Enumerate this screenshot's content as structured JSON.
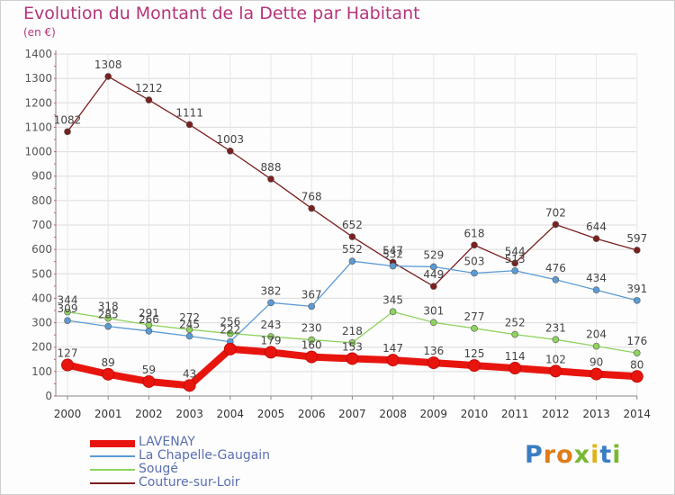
{
  "header": {
    "title": "Evolution du Montant de la Dette par Habitant",
    "unit": "(en €)"
  },
  "logo": {
    "letters": [
      "P",
      "r",
      "o",
      "x",
      "i",
      "t",
      "i"
    ],
    "colors": [
      "#3a7ec2",
      "#e07b1a",
      "#e07b1a",
      "#7ab833",
      "#e0b21a",
      "#3a7ec2",
      "#7ab833"
    ]
  },
  "chart_data": {
    "type": "line",
    "title": "Evolution du Montant de la Dette par Habitant",
    "ylabel": "(en €)",
    "xlabel": "",
    "x": [
      "2000",
      "2001",
      "2002",
      "2003",
      "2004",
      "2005",
      "2006",
      "2007",
      "2008",
      "2009",
      "2010",
      "2011",
      "2012",
      "2013",
      "2014"
    ],
    "ylim": [
      0,
      1400
    ],
    "yticks": [
      0,
      100,
      200,
      300,
      400,
      500,
      600,
      700,
      800,
      900,
      1000,
      1100,
      1200,
      1300,
      1400
    ],
    "grid": true,
    "legend_position": "bottom-left",
    "series": [
      {
        "name": "LAVENAY",
        "color": "#e8150f",
        "values": [
          127,
          89,
          59,
          43,
          192,
          179,
          160,
          153,
          147,
          136,
          125,
          114,
          102,
          90,
          80
        ],
        "labels": [
          "127",
          "89",
          "59",
          "43",
          "",
          "179",
          "160",
          "153",
          "147",
          "136",
          "125",
          "114",
          "102",
          "90",
          "80"
        ]
      },
      {
        "name": "La Chapelle-Gaugain",
        "color": "#5b9bd5",
        "values": [
          309,
          285,
          266,
          245,
          222,
          382,
          367,
          552,
          532,
          529,
          503,
          513,
          476,
          434,
          391
        ],
        "labels": [
          "309",
          "285",
          "266",
          "245",
          "222",
          "382",
          "367",
          "552",
          "532",
          "529",
          "503",
          "513",
          "476",
          "434",
          "391"
        ]
      },
      {
        "name": "Sougé",
        "color": "#8fd35f",
        "values": [
          344,
          318,
          291,
          272,
          256,
          243,
          230,
          218,
          345,
          301,
          277,
          252,
          231,
          204,
          176
        ],
        "labels": [
          "344",
          "318",
          "291",
          "272",
          "256",
          "243",
          "230",
          "218",
          "345",
          "301",
          "277",
          "252",
          "231",
          "204",
          "176"
        ]
      },
      {
        "name": "Couture-sur-Loir",
        "color": "#7b1f1f",
        "values": [
          1082,
          1308,
          1212,
          1111,
          1003,
          888,
          768,
          652,
          547,
          449,
          618,
          544,
          702,
          644,
          597
        ],
        "labels": [
          "1082",
          "1308",
          "1212",
          "1111",
          "1003",
          "888",
          "768",
          "652",
          "547",
          "449",
          "618",
          "544",
          "702",
          "644",
          "597"
        ]
      }
    ]
  }
}
